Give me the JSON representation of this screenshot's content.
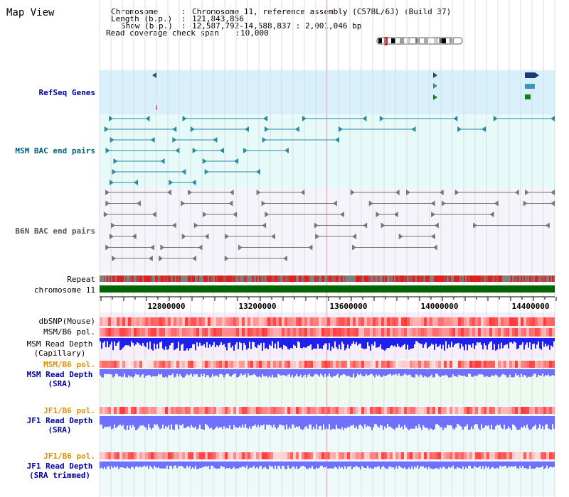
{
  "title": "Map View",
  "info": {
    "chromosome_key": "Chromosome",
    "chromosome_val": "Chromosome 11, reference assembly (C57BL/6J) (Build 37)",
    "length_key": "Length (b.p.)",
    "length_val": "121,843,856",
    "show_key": "Show (b.p.)",
    "show_val": "12,587,792-14,588,837 : 2,001,046 bp",
    "span_key": "Read coverage check span",
    "span_val": "10,000"
  },
  "tracks": {
    "refseq": "RefSeq Genes",
    "msm_bac": "MSM BAC end pairs",
    "b6n_bac": "B6N BAC end pairs",
    "repeat": "Repeat",
    "chromosome": "chromosome 11",
    "dbsnp": "dbSNP(Mouse)",
    "msm_b6_pol": "MSM/B6 pol.",
    "msm_depth_cap_1": "MSM Read Depth",
    "msm_depth_cap_2": "(Capillary)",
    "msm_b6_pol_sra": "MSM/B6 pol.",
    "msm_depth_sra_1": "MSM Read Depth",
    "msm_depth_sra_2": "(SRA)",
    "jf1_b6_pol_1": "JF1/B6 pol.",
    "jf1_depth_1": "JF1 Read Depth",
    "jf1_depth_1b": "(SRA)",
    "jf1_b6_pol_2": "JF1/B6 pol.",
    "jf1_depth_2": "JF1 Read Depth",
    "jf1_depth_2b": "(SRA trimmed)"
  },
  "axis_ticks": [
    "12800000",
    "13200000",
    "13600000",
    "14000000",
    "14400000"
  ],
  "colors": {
    "refseq_bg": "#d8f0fa",
    "bac_bg": "#e6fafa",
    "label_blue": "#0000aa",
    "label_teal": "#006080",
    "label_orange": "#e09000",
    "chrom_green": "#006400",
    "snp_red": "#ff2020",
    "depth_blue": "#2020ee",
    "depth_lblue": "#7070ff"
  }
}
